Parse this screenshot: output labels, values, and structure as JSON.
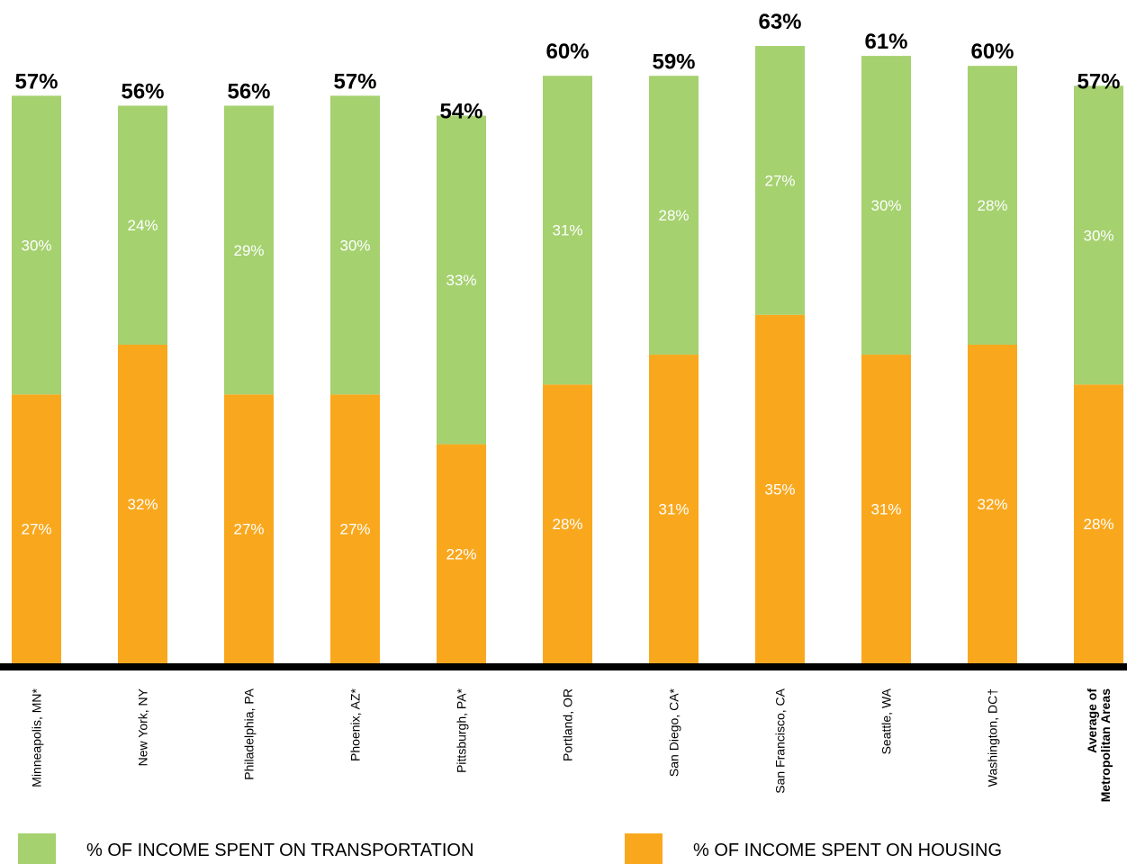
{
  "chart_data": {
    "type": "bar",
    "stacked": true,
    "categories": [
      "Minneapolis, MN*",
      "New York, NY",
      "Philadelphia, PA",
      "Phoenix, AZ*",
      "Pittsburgh, PA*",
      "Portland, OR",
      "San Diego, CA*",
      "San Francisco, CA",
      "Seattle, WA",
      "Washington, DC†",
      "Average of Metropolitan Areas"
    ],
    "category_lines": [
      [
        "Minneapolis, MN*"
      ],
      [
        "New York, NY"
      ],
      [
        "Philadelphia, PA"
      ],
      [
        "Phoenix, AZ*"
      ],
      [
        "Pittsburgh, PA*"
      ],
      [
        "Portland, OR"
      ],
      [
        "San Diego, CA*"
      ],
      [
        "San Francisco, CA"
      ],
      [
        "Seattle, WA"
      ],
      [
        "Washington, DC†"
      ],
      [
        "Average of",
        "Metropolitan Areas"
      ]
    ],
    "series": [
      {
        "name": "% OF INCOME SPENT ON HOUSING",
        "color": "#F9A81E",
        "values": [
          27,
          32,
          27,
          27,
          22,
          28,
          31,
          35,
          31,
          32,
          28
        ],
        "labels": [
          "27%",
          "32%",
          "27%",
          "27%",
          "22%",
          "28%",
          "31%",
          "35%",
          "31%",
          "32%",
          "28%"
        ]
      },
      {
        "name": "% OF INCOME SPENT ON TRANSPORTATION",
        "color": "#A5D16F",
        "values": [
          30,
          24,
          29,
          30,
          33,
          31,
          28,
          27,
          30,
          28,
          30
        ],
        "labels": [
          "30%",
          "24%",
          "29%",
          "30%",
          "33%",
          "31%",
          "28%",
          "27%",
          "30%",
          "28%",
          "30%"
        ]
      }
    ],
    "totals": [
      57,
      56,
      56,
      57,
      54,
      60,
      59,
      63,
      61,
      60,
      57
    ],
    "total_labels": [
      "57%",
      "56%",
      "56%",
      "57%",
      "54%",
      "60%",
      "59%",
      "63%",
      "61%",
      "60%",
      "57%"
    ],
    "ylim": [
      0,
      63
    ],
    "grid": false,
    "axis_color": "#000000",
    "legend_position": "bottom"
  }
}
